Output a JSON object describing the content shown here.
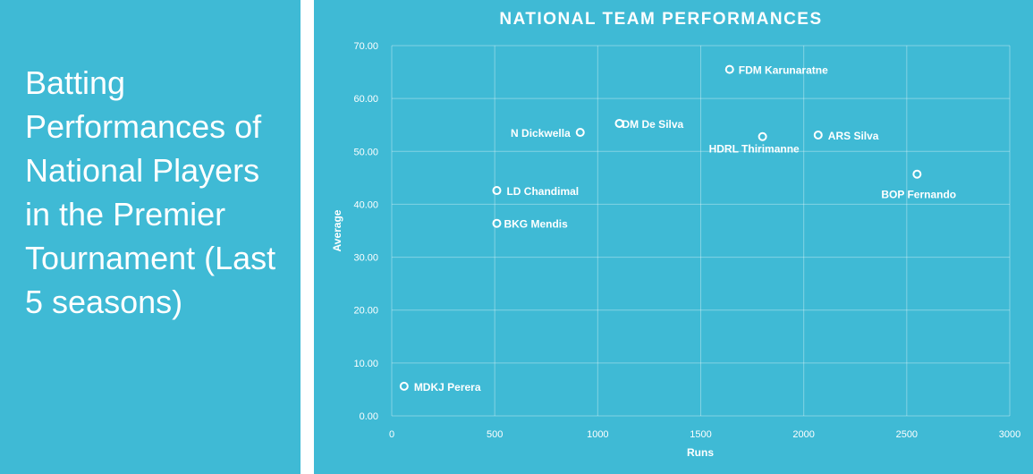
{
  "left_panel": {
    "title": "Batting Performances of National Players in the Premier Tournament (Last 5 seasons)"
  },
  "colors": {
    "background": "#3fbad5",
    "text": "#ffffff"
  },
  "chart_data": {
    "type": "scatter",
    "title": "NATIONAL TEAM PERFORMANCES",
    "xlabel": "Runs",
    "ylabel": "Average",
    "xlim": [
      0,
      3000
    ],
    "ylim": [
      0,
      70
    ],
    "x_ticks": [
      "0",
      "500",
      "1000",
      "1500",
      "2000",
      "2500",
      "3000"
    ],
    "y_ticks": [
      "0.00",
      "10.00",
      "20.00",
      "30.00",
      "40.00",
      "50.00",
      "60.00",
      "70.00"
    ],
    "grid": true,
    "points": [
      {
        "label": "FDM Karunaratne",
        "x": 1640,
        "y": 65.5
      },
      {
        "label": "DM De Silva",
        "x": 1105,
        "y": 55.3
      },
      {
        "label": "N Dickwella",
        "x": 915,
        "y": 53.6
      },
      {
        "label": "HDRL Thirimanne",
        "x": 1800,
        "y": 52.8
      },
      {
        "label": "ARS Silva",
        "x": 2070,
        "y": 53.1
      },
      {
        "label": "BOP Fernando",
        "x": 2550,
        "y": 45.7
      },
      {
        "label": "LD Chandimal",
        "x": 510,
        "y": 42.6
      },
      {
        "label": "BKG Mendis",
        "x": 510,
        "y": 36.4
      },
      {
        "label": "MDKJ Perera",
        "x": 60,
        "y": 5.6
      }
    ]
  }
}
